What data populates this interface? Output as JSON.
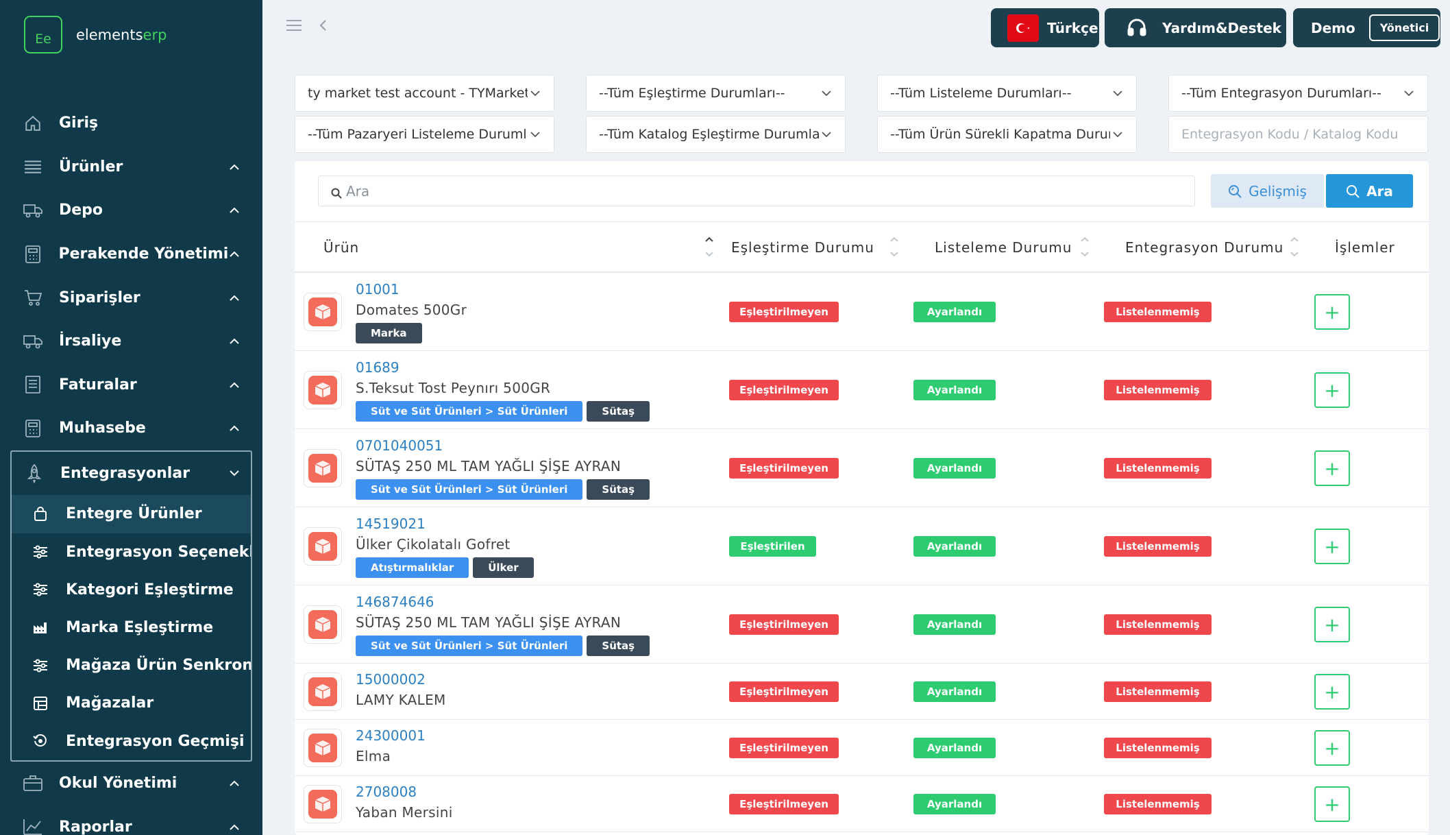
{
  "brand": {
    "logo_text": "Ee",
    "name_prefix": "elements",
    "name_suffix": "erp",
    "accent_color": "#43d35d"
  },
  "sidebar": {
    "items": [
      {
        "label": "Giriş",
        "icon": "home-icon"
      },
      {
        "label": "Ürünler",
        "icon": "list-icon"
      },
      {
        "label": "Depo",
        "icon": "truck-icon"
      },
      {
        "label": "Perakende Yönetimi",
        "icon": "calculator-icon"
      },
      {
        "label": "Siparişler",
        "icon": "cart-icon"
      },
      {
        "label": "İrsaliye",
        "icon": "truck-icon"
      },
      {
        "label": "Faturalar",
        "icon": "document-icon"
      },
      {
        "label": "Muhasebe",
        "icon": "calculator-icon"
      }
    ],
    "group": {
      "label": "Entegrasyonlar",
      "icon": "rocket-icon",
      "children": [
        {
          "label": "Entegre Ürünler",
          "icon": "bag-icon",
          "active": true
        },
        {
          "label": "Entegrasyon Seçenekleri",
          "icon": "sliders-icon"
        },
        {
          "label": "Kategori Eşleştirme",
          "icon": "sliders-icon"
        },
        {
          "label": "Marka Eşleştirme",
          "icon": "factory-icon"
        },
        {
          "label": "Mağaza Ürün Senkronizasyonu",
          "icon": "sliders-icon"
        },
        {
          "label": "Mağazalar",
          "icon": "store-icon"
        },
        {
          "label": "Entegrasyon Geçmişi",
          "icon": "history-icon"
        }
      ]
    },
    "after": [
      {
        "label": "Okul Yönetimi",
        "icon": "briefcase-icon"
      },
      {
        "label": "Raporlar",
        "icon": "chart-icon"
      }
    ]
  },
  "topbar": {
    "language": "Türkçe",
    "help": "Yardım&Destek",
    "user": "Demo",
    "role": "Yönetici"
  },
  "filters": {
    "account": "ty market test account - TYMarket",
    "match_status": "--Tüm Eşleştirme Durumları--",
    "listing_status": "--Tüm Listeleme Durumları--",
    "integration_status": "--Tüm Entegrasyon Durumları--",
    "marketplace_listing": "--Tüm Pazaryeri Listeleme Durumları--",
    "catalog_match": "--Tüm Katalog Eşleştirme Durumları--",
    "permanent_close": "--Tüm Ürün Sürekli Kapatma Durumları--",
    "code_placeholder": "Entegrasyon Kodu / Katalog Kodu"
  },
  "search": {
    "placeholder": "Ara",
    "advanced_label": "Gelişmiş",
    "search_label": "Ara"
  },
  "table": {
    "headers": {
      "product": "Ürün",
      "match": "Eşleştirme Durumu",
      "listing": "Listeleme Durumu",
      "integration": "Entegrasyon Durumu",
      "actions": "İşlemler"
    },
    "rows": [
      {
        "code": "01001",
        "name": "Domates 500Gr",
        "category": "",
        "brand": "Marka",
        "match": "Eşleştirilmeyen",
        "listing": "Ayarlandı",
        "integration": "Listelenmemiş"
      },
      {
        "code": "01689",
        "name": "S.Teksut Tost Peynırı 500GR",
        "category": "Süt ve Süt Ürünleri > Süt Ürünleri",
        "brand": "Sütaş",
        "match": "Eşleştirilmeyen",
        "listing": "Ayarlandı",
        "integration": "Listelenmemiş"
      },
      {
        "code": "0701040051",
        "name": "SÜTAŞ 250 ML TAM YAĞLI ŞİŞE AYRAN",
        "category": "Süt ve Süt Ürünleri > Süt Ürünleri",
        "brand": "Sütaş",
        "match": "Eşleştirilmeyen",
        "listing": "Ayarlandı",
        "integration": "Listelenmemiş"
      },
      {
        "code": "14519021",
        "name": "Ülker Çikolatalı Gofret",
        "category": "Atıştırmalıklar",
        "brand": "Ülker",
        "match": "Eşleştirilen",
        "listing": "Ayarlandı",
        "integration": "Listelenmemiş"
      },
      {
        "code": "146874646",
        "name": "SÜTAŞ 250 ML TAM YAĞLI ŞİŞE AYRAN",
        "category": "Süt ve Süt Ürünleri > Süt Ürünleri",
        "brand": "Sütaş",
        "match": "Eşleştirilmeyen",
        "listing": "Ayarlandı",
        "integration": "Listelenmemiş"
      },
      {
        "code": "15000002",
        "name": "LAMY KALEM",
        "category": "",
        "brand": "",
        "match": "Eşleştirilmeyen",
        "listing": "Ayarlandı",
        "integration": "Listelenmemiş"
      },
      {
        "code": "24300001",
        "name": "Elma",
        "category": "",
        "brand": "",
        "match": "Eşleştirilmeyen",
        "listing": "Ayarlandı",
        "integration": "Listelenmemiş"
      },
      {
        "code": "2708008",
        "name": "Yaban Mersini",
        "category": "",
        "brand": "",
        "match": "Eşleştirilmeyen",
        "listing": "Ayarlandı",
        "integration": "Listelenmemiş"
      }
    ],
    "add_label": "+"
  }
}
